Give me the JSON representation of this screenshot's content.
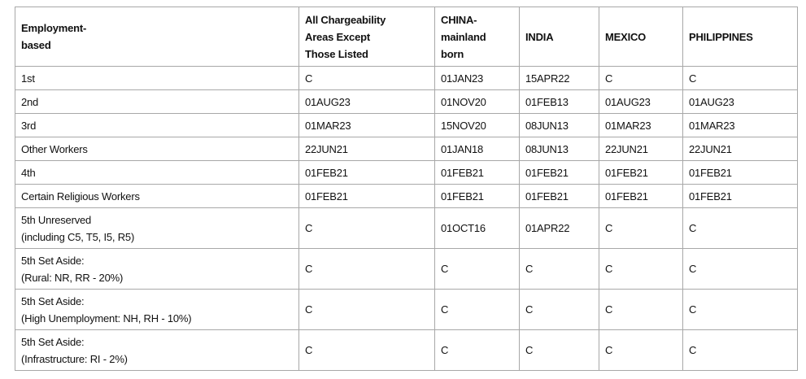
{
  "table": {
    "headers": [
      "Employment-\nbased",
      "All Chargeability Areas Except Those Listed",
      "CHINA-mainland born",
      "INDIA",
      "MEXICO",
      "PHILIPPINES"
    ],
    "header_lines": [
      [
        "Employment-",
        "based"
      ],
      [
        "All Chargeability",
        "Areas Except",
        "Those Listed"
      ],
      [
        "CHINA-",
        "mainland",
        "born"
      ],
      [
        "INDIA"
      ],
      [
        "MEXICO"
      ],
      [
        "PHILIPPINES"
      ]
    ],
    "rows": [
      {
        "label": [
          "1st"
        ],
        "values": [
          "C",
          "01JAN23",
          "15APR22",
          "C",
          "C"
        ]
      },
      {
        "label": [
          "2nd"
        ],
        "values": [
          "01AUG23",
          "01NOV20",
          "01FEB13",
          "01AUG23",
          "01AUG23"
        ]
      },
      {
        "label": [
          "3rd"
        ],
        "values": [
          "01MAR23",
          "15NOV20",
          "08JUN13",
          "01MAR23",
          "01MAR23"
        ]
      },
      {
        "label": [
          "Other Workers"
        ],
        "values": [
          "22JUN21",
          "01JAN18",
          "08JUN13",
          "22JUN21",
          "22JUN21"
        ]
      },
      {
        "label": [
          "4th"
        ],
        "values": [
          "01FEB21",
          "01FEB21",
          "01FEB21",
          "01FEB21",
          "01FEB21"
        ]
      },
      {
        "label": [
          "Certain Religious Workers"
        ],
        "values": [
          "01FEB21",
          "01FEB21",
          "01FEB21",
          "01FEB21",
          "01FEB21"
        ]
      },
      {
        "label": [
          "5th Unreserved",
          "(including C5, T5, I5, R5)"
        ],
        "values": [
          "C",
          "01OCT16",
          "01APR22",
          "C",
          "C"
        ]
      },
      {
        "label": [
          "5th Set Aside:",
          "(Rural: NR, RR - 20%)"
        ],
        "values": [
          "C",
          "C",
          "C",
          "C",
          "C"
        ]
      },
      {
        "label": [
          "5th Set Aside:",
          "(High Unemployment: NH, RH - 10%)"
        ],
        "values": [
          "C",
          "C",
          "C",
          "C",
          "C"
        ]
      },
      {
        "label": [
          "5th Set Aside:",
          "(Infrastructure: RI - 2%)"
        ],
        "values": [
          "C",
          "C",
          "C",
          "C",
          "C"
        ]
      }
    ]
  }
}
